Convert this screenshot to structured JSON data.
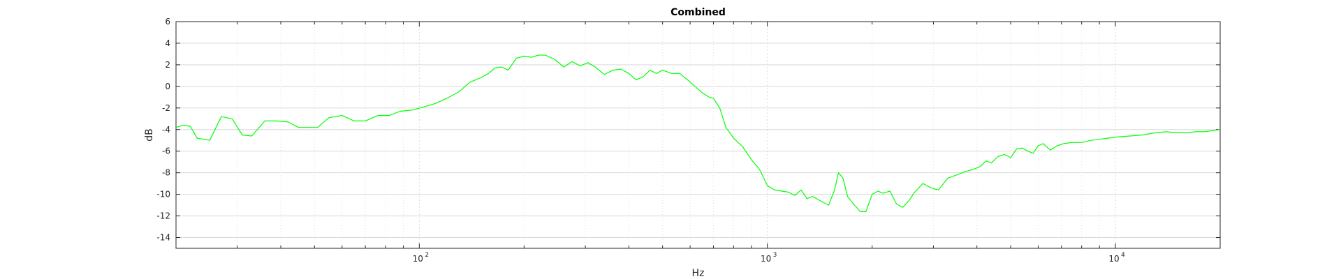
{
  "chart_data": {
    "type": "line",
    "title": "Combined",
    "xlabel": "Hz",
    "ylabel": "dB",
    "xscale": "log",
    "xlim": [
      20,
      20000
    ],
    "ylim": [
      -15,
      6
    ],
    "yticks": [
      6,
      4,
      2,
      0,
      -2,
      -4,
      -6,
      -8,
      -10,
      -12,
      -14
    ],
    "xticks": [
      {
        "value": 100,
        "base": "10",
        "exp": "2"
      },
      {
        "value": 1000,
        "base": "10",
        "exp": "3"
      },
      {
        "value": 10000,
        "base": "10",
        "exp": "4"
      }
    ],
    "grid": true,
    "series": [
      {
        "color": "#00ff00",
        "x": [
          20,
          21,
          22,
          23,
          25,
          27,
          29,
          31,
          33,
          36,
          39,
          42,
          45,
          48,
          51,
          55,
          60,
          65,
          70,
          76,
          82,
          88,
          95,
          103,
          111,
          120,
          130,
          140,
          150,
          158,
          165,
          172,
          180,
          190,
          200,
          210,
          220,
          230,
          245,
          260,
          275,
          290,
          305,
          320,
          340,
          360,
          380,
          400,
          420,
          440,
          460,
          480,
          500,
          530,
          560,
          590,
          620,
          650,
          680,
          700,
          730,
          760,
          800,
          850,
          900,
          950,
          1000,
          1050,
          1100,
          1150,
          1200,
          1250,
          1300,
          1350,
          1420,
          1500,
          1560,
          1600,
          1650,
          1700,
          1780,
          1850,
          1920,
          2000,
          2080,
          2150,
          2250,
          2350,
          2450,
          2550,
          2650,
          2800,
          2950,
          3100,
          3300,
          3500,
          3700,
          3900,
          4100,
          4250,
          4400,
          4600,
          4800,
          5000,
          5200,
          5400,
          5600,
          5800,
          6000,
          6200,
          6500,
          6800,
          7100,
          7500,
          8000,
          8500,
          9000,
          9500,
          10000,
          11000,
          12000,
          13000,
          14000,
          15000,
          16000,
          17000,
          18000,
          19000,
          20000
        ],
        "y": [
          -3.8,
          -3.6,
          -3.7,
          -4.8,
          -5.0,
          -2.8,
          -3.0,
          -4.5,
          -4.6,
          -3.2,
          -3.2,
          -3.3,
          -3.8,
          -3.8,
          -3.8,
          -2.9,
          -2.7,
          -3.2,
          -3.2,
          -2.7,
          -2.7,
          -2.3,
          -2.2,
          -1.9,
          -1.6,
          -1.1,
          -0.5,
          0.4,
          0.8,
          1.2,
          1.7,
          1.8,
          1.5,
          2.6,
          2.8,
          2.7,
          2.9,
          2.9,
          2.5,
          1.8,
          2.3,
          1.9,
          2.2,
          1.8,
          1.1,
          1.5,
          1.6,
          1.2,
          0.6,
          0.9,
          1.5,
          1.2,
          1.5,
          1.2,
          1.2,
          0.6,
          0.0,
          -0.6,
          -1.0,
          -1.1,
          -2.0,
          -3.8,
          -4.8,
          -5.6,
          -6.8,
          -7.7,
          -9.2,
          -9.6,
          -9.7,
          -9.8,
          -10.1,
          -9.6,
          -10.4,
          -10.2,
          -10.6,
          -11.0,
          -9.6,
          -8.0,
          -8.5,
          -10.2,
          -11.0,
          -11.6,
          -11.6,
          -10.0,
          -9.7,
          -9.9,
          -9.7,
          -10.9,
          -11.2,
          -10.6,
          -9.8,
          -9.0,
          -9.4,
          -9.6,
          -8.5,
          -8.2,
          -7.9,
          -7.7,
          -7.4,
          -6.9,
          -7.1,
          -6.5,
          -6.3,
          -6.6,
          -5.8,
          -5.7,
          -6.0,
          -6.2,
          -5.5,
          -5.3,
          -5.9,
          -5.5,
          -5.3,
          -5.2,
          -5.2,
          -5.0,
          -4.9,
          -4.8,
          -4.7,
          -4.6,
          -4.5,
          -4.3,
          -4.2,
          -4.3,
          -4.3,
          -4.2,
          -4.2,
          -4.1,
          -4.0
        ]
      }
    ]
  }
}
